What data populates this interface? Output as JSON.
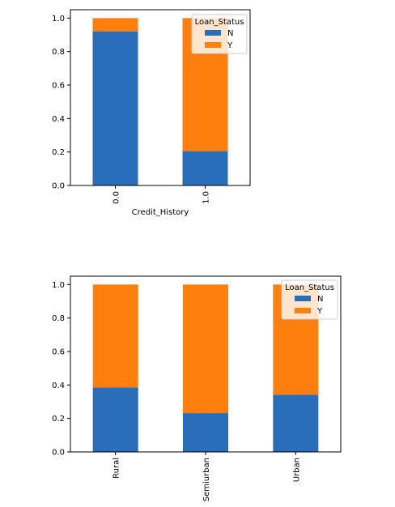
{
  "chart_data": [
    {
      "type": "bar",
      "stacked": true,
      "categories": [
        "0.0",
        "1.0"
      ],
      "xlabel": "Credit_History",
      "ylabel": "",
      "ylim": [
        0,
        1.05
      ],
      "yticks": [
        0.0,
        0.2,
        0.4,
        0.6,
        0.8,
        1.0
      ],
      "ytick_labels": [
        "0.0",
        "0.2",
        "0.4",
        "0.6",
        "0.8",
        "1.0"
      ],
      "grid": false,
      "legend": {
        "title": "Loan_Status",
        "position": "top-right"
      },
      "series": [
        {
          "name": "N",
          "color": "#2a6ebb",
          "values": [
            0.921,
            0.205
          ]
        },
        {
          "name": "Y",
          "color": "#ff7f0e",
          "values": [
            0.079,
            0.795
          ]
        }
      ]
    },
    {
      "type": "bar",
      "stacked": true,
      "categories": [
        "Rural",
        "Semiurban",
        "Urban"
      ],
      "xlabel": "",
      "ylabel": "",
      "ylim": [
        0,
        1.05
      ],
      "yticks": [
        0.0,
        0.2,
        0.4,
        0.6,
        0.8,
        1.0
      ],
      "ytick_labels": [
        "0.0",
        "0.2",
        "0.4",
        "0.6",
        "0.8",
        "1.0"
      ],
      "grid": false,
      "legend": {
        "title": "Loan_Status",
        "position": "top-right"
      },
      "series": [
        {
          "name": "N",
          "color": "#2a6ebb",
          "values": [
            0.385,
            0.232,
            0.342
          ]
        },
        {
          "name": "Y",
          "color": "#ff7f0e",
          "values": [
            0.615,
            0.768,
            0.658
          ]
        }
      ]
    }
  ]
}
